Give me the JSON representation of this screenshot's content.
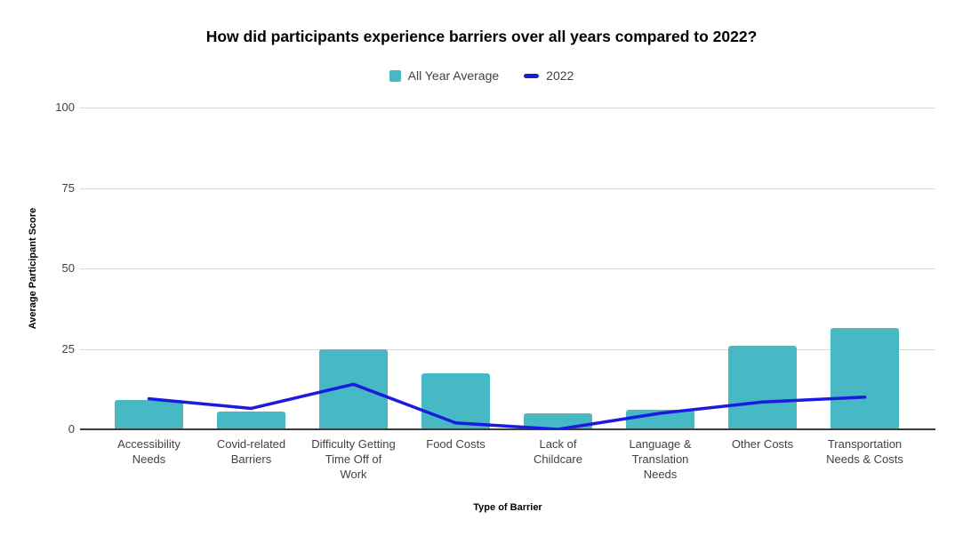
{
  "chart_data": {
    "type": "bar+line combo",
    "title": "How did participants experience barriers over all years compared to 2022?",
    "xlabel": "Type of Barrier",
    "ylabel": "Average Participant Score",
    "ylim": [
      0,
      100
    ],
    "yticks": [
      0,
      25,
      50,
      75,
      100
    ],
    "grid": true,
    "legend_position": "top-center",
    "background_color": "#ffffff",
    "gridline_color": "#d9d9d9",
    "axis_line_color": "#3d3d3d",
    "categories": [
      "Accessibility Needs",
      "Covid-related Barriers",
      "Difficulty Getting Time Off of Work",
      "Food Costs",
      "Lack of Childcare",
      "Language & Translation Needs",
      "Other Costs",
      "Transportation Needs & Costs"
    ],
    "series": [
      {
        "name": "All Year Average",
        "type": "bar",
        "color": "#46b9c4",
        "values": [
          9,
          5.5,
          25,
          17.5,
          5,
          6,
          26,
          31.5
        ]
      },
      {
        "name": "2022",
        "type": "line",
        "color": "#1a1ae0",
        "values": [
          9.5,
          6.5,
          14,
          2,
          0,
          5,
          8.5,
          10
        ]
      }
    ]
  }
}
